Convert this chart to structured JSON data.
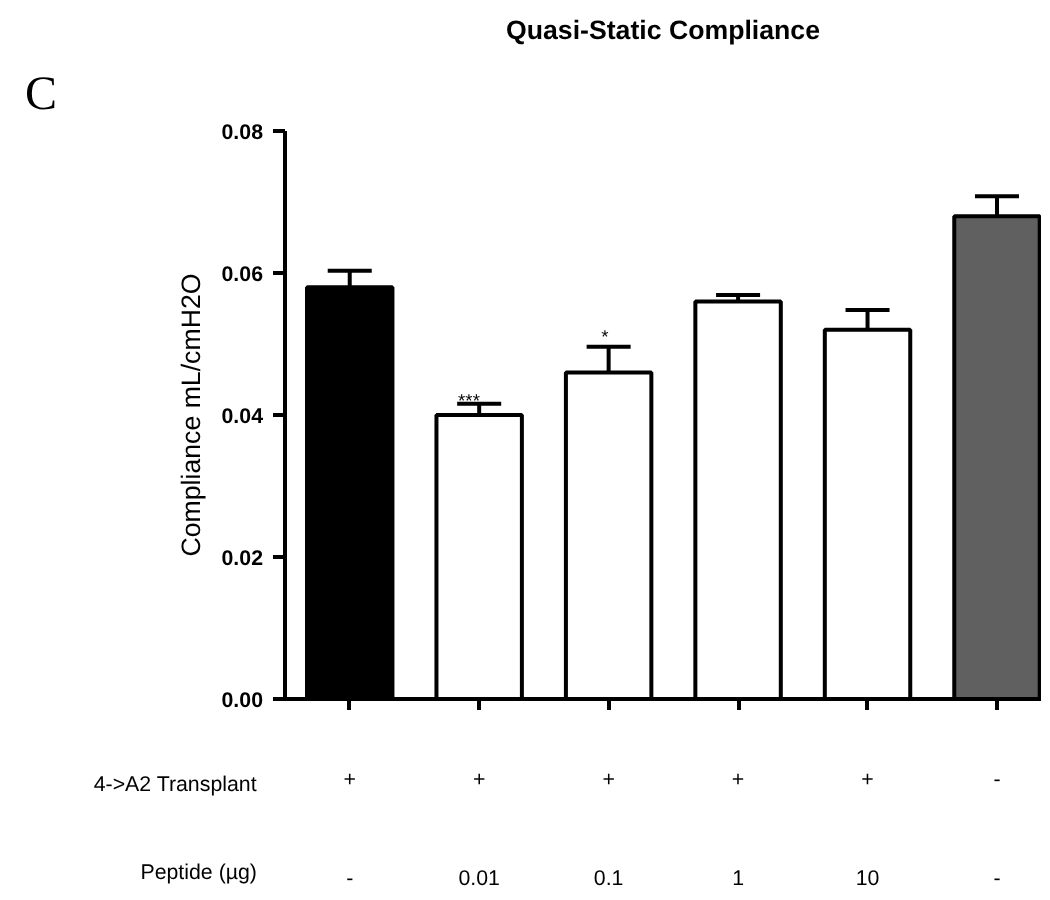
{
  "chart_data": {
    "type": "bar",
    "title": "Quasi-Static Compliance",
    "ylabel": "Compliance mL/cmH2O",
    "categories": [
      "+\n-",
      "+\n0.01",
      "+\n0.1",
      "+\n1",
      "+\n10",
      "-\n-"
    ],
    "values": [
      0.058,
      0.04,
      0.046,
      0.056,
      0.052,
      0.068
    ],
    "colors": [
      "#000000",
      "#ffffff",
      "#ffffff",
      "#ffffff",
      "#ffffff",
      "#606060"
    ],
    "errors": [
      [
        0.058,
        0.0603
      ],
      [
        0.04,
        0.0416
      ],
      [
        0.046,
        0.0496
      ],
      [
        0.056,
        0.0569
      ],
      [
        0.052,
        0.0548
      ],
      [
        0.068,
        0.0708
      ]
    ],
    "ylim": [
      0,
      0.08
    ],
    "yticks": [
      {
        "value": 0,
        "label": "0.00"
      },
      {
        "value": 0.02,
        "label": "0.02"
      },
      {
        "value": 0.04,
        "label": "0.04"
      },
      {
        "value": 0.06,
        "label": "0.06"
      },
      {
        "value": 0.08,
        "label": "0.08"
      }
    ],
    "grid": false,
    "annotations": [
      "C",
      "4->A2 Transplant",
      "Peptide (µg)",
      "***",
      "*"
    ]
  }
}
